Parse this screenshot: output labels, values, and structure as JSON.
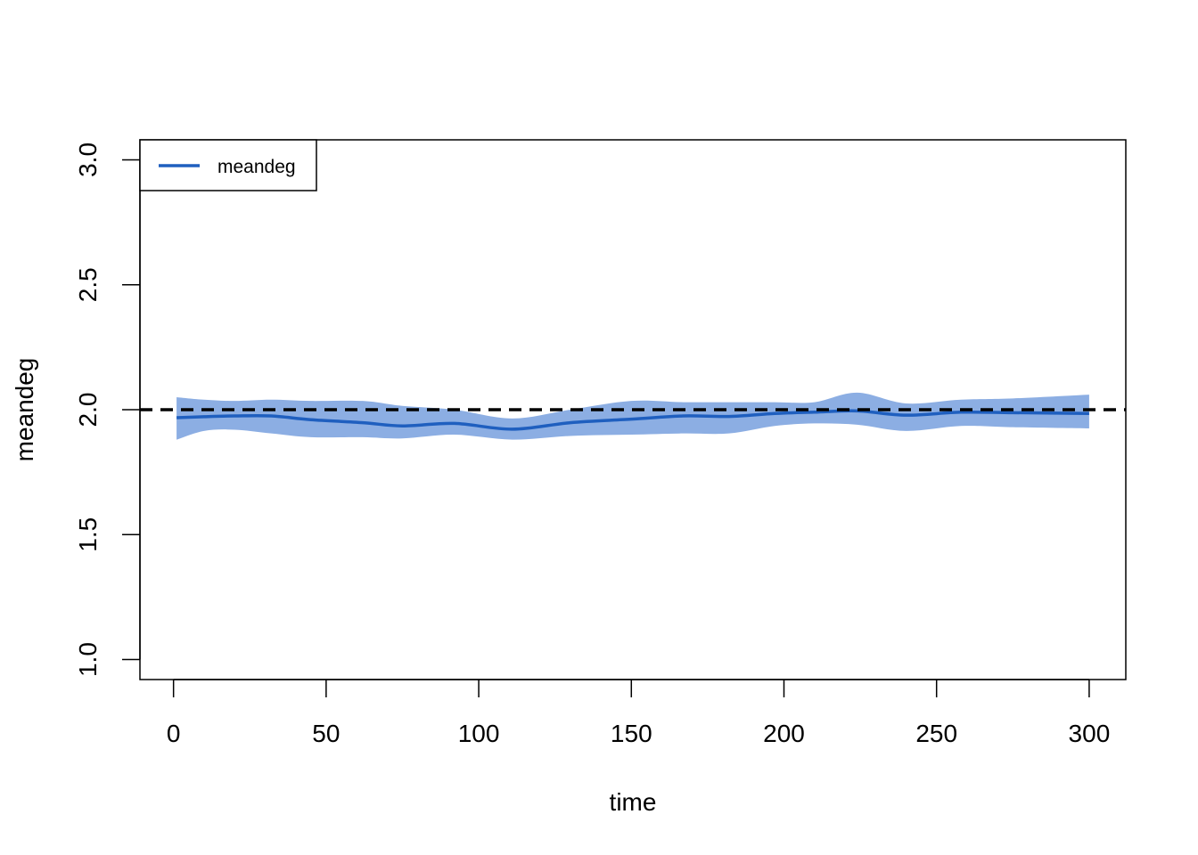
{
  "chart_data": {
    "type": "line",
    "title": "",
    "xlabel": "time",
    "ylabel": "meandeg",
    "xlim": [
      -11,
      312
    ],
    "ylim": [
      0.92,
      3.08
    ],
    "xticks": [
      0,
      50,
      100,
      150,
      200,
      250,
      300
    ],
    "yticks": [
      1.0,
      1.5,
      2.0,
      2.5,
      3.0
    ],
    "grid": false,
    "legend": {
      "placement": "top-left",
      "entries": [
        "meandeg"
      ]
    },
    "reference_line": {
      "y": 2.0,
      "style": "dashed",
      "color": "#000000"
    },
    "colors": {
      "line": "#1f5fbf",
      "band": "#8caee3",
      "reference": "#000000"
    },
    "series": [
      {
        "name": "meandeg",
        "x": [
          1,
          10,
          20,
          32,
          45,
          62,
          75,
          92,
          111,
          130,
          150,
          167,
          182,
          197,
          210,
          224,
          240,
          258,
          275,
          300
        ],
        "mean": [
          1.968,
          1.972,
          1.975,
          1.975,
          1.96,
          1.948,
          1.935,
          1.945,
          1.922,
          1.948,
          1.962,
          1.975,
          1.973,
          1.985,
          1.99,
          1.995,
          1.978,
          1.99,
          1.988,
          1.985
        ],
        "upper": [
          2.05,
          2.04,
          2.035,
          2.04,
          2.035,
          2.035,
          2.015,
          2.0,
          1.965,
          2.0,
          2.035,
          2.03,
          2.03,
          2.03,
          2.03,
          2.068,
          2.025,
          2.04,
          2.045,
          2.06
        ],
        "lower": [
          1.88,
          1.915,
          1.92,
          1.905,
          1.89,
          1.89,
          1.885,
          1.9,
          1.88,
          1.895,
          1.9,
          1.905,
          1.905,
          1.935,
          1.945,
          1.94,
          1.915,
          1.935,
          1.93,
          1.925
        ]
      }
    ]
  }
}
